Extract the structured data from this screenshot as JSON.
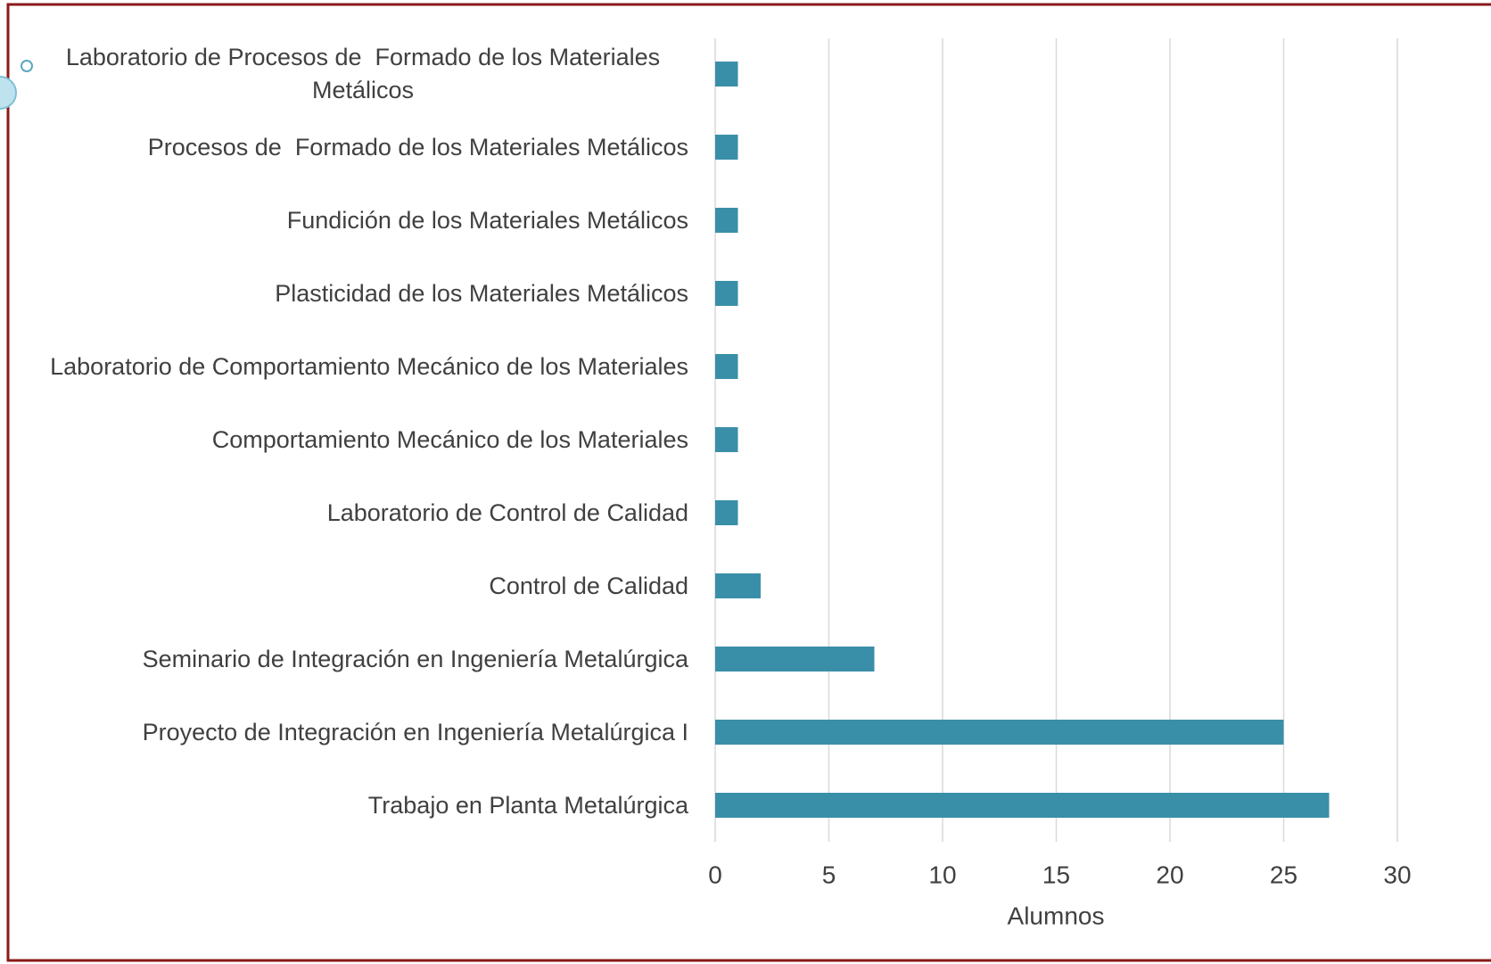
{
  "chart_data": {
    "type": "bar",
    "orientation": "horizontal",
    "categories": [
      "Laboratorio de Procesos de  Formado de los Materiales Metálicos",
      "Procesos de  Formado de los Materiales Metálicos",
      "Fundición de los Materiales Metálicos",
      "Plasticidad de los Materiales Metálicos",
      "Laboratorio de Comportamiento Mecánico de los Materiales",
      "Comportamiento Mecánico de los Materiales",
      "Laboratorio de Control de Calidad",
      "Control de Calidad",
      "Seminario de Integración en Ingeniería Metalúrgica",
      "Proyecto de Integración en Ingeniería Metalúrgica I",
      "Trabajo en Planta Metalúrgica"
    ],
    "values": [
      1,
      1,
      1,
      1,
      1,
      1,
      1,
      2,
      7,
      25,
      27
    ],
    "color": "#3a8fa8",
    "x_label": "Alumnos",
    "xlim": [
      0,
      30
    ],
    "xticks": [
      0,
      5,
      10,
      15,
      20,
      25,
      30
    ],
    "grid": true
  }
}
